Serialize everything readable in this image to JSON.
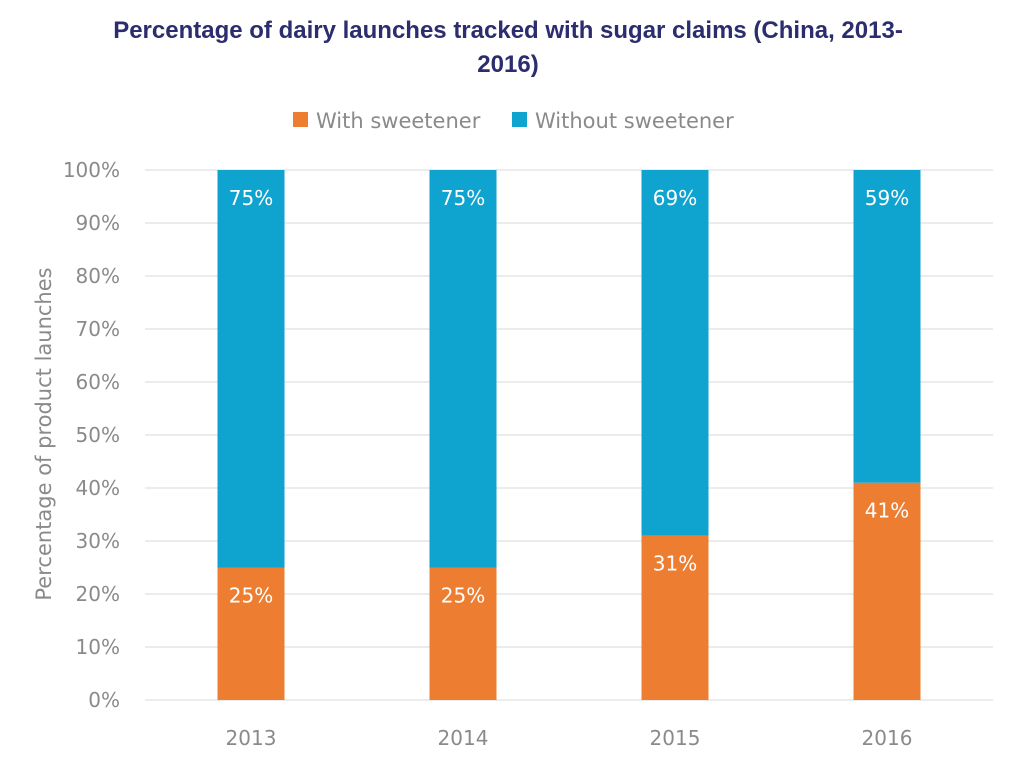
{
  "chart_data": {
    "type": "bar",
    "stacked": true,
    "title": "Percentage of dairy launches tracked with sugar claims (China, 2013-2016)",
    "title_lines": [
      "Percentage of dairy launches tracked with sugar claims (China, 2013-",
      "2016)"
    ],
    "ylabel": "Percentage of product launches",
    "xlabel": "",
    "categories": [
      "2013",
      "2014",
      "2015",
      "2016"
    ],
    "ylim": [
      0,
      100
    ],
    "yticks": [
      0,
      10,
      20,
      30,
      40,
      50,
      60,
      70,
      80,
      90,
      100
    ],
    "ytick_labels": [
      "0%",
      "10%",
      "20%",
      "30%",
      "40%",
      "50%",
      "60%",
      "70%",
      "80%",
      "90%",
      "100%"
    ],
    "grid": true,
    "legend_position": "top",
    "series": [
      {
        "name": "With sweetener",
        "color": "#ed7d31",
        "values": [
          25,
          25,
          31,
          41
        ],
        "labels": [
          "25%",
          "25%",
          "31%",
          "41%"
        ]
      },
      {
        "name": "Without sweetener",
        "color": "#0fa3cf",
        "values": [
          75,
          75,
          69,
          59
        ],
        "labels": [
          "75%",
          "75%",
          "69%",
          "59%"
        ]
      }
    ]
  }
}
